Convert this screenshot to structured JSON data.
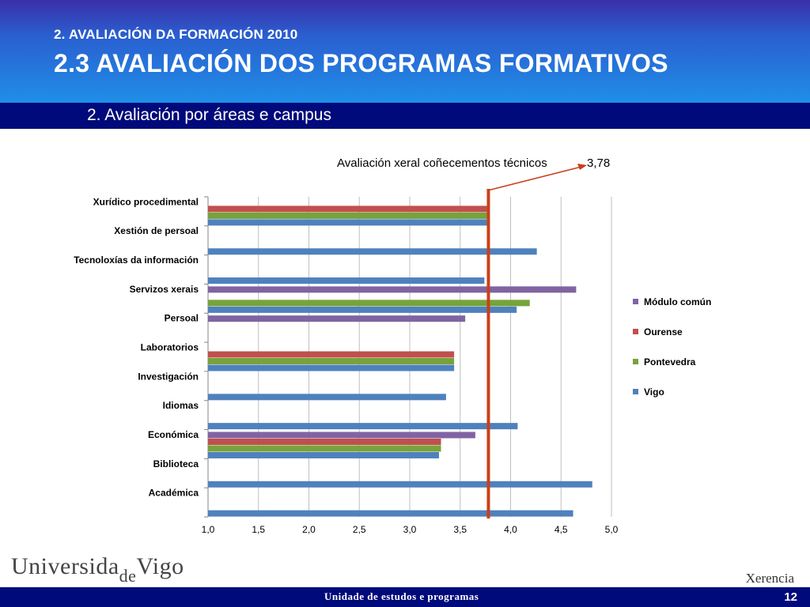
{
  "header": {
    "section": "2. AVALIACIÓN DA FORMACIÓN 2010",
    "title": "2.3 AVALIACIÓN DOS PROGRAMAS FORMATIVOS",
    "subtitle": "2. Avaliación por áreas e campus"
  },
  "footer": {
    "logo_part1": "Universida",
    "logo_part2": "de",
    "logo_part3": "Vigo",
    "right_label": "Xerencia",
    "bar_text": "Unidade de estudos e programas",
    "page_number": "12"
  },
  "chart_data": {
    "type": "bar",
    "orientation": "horizontal",
    "categories": [
      "Xurídico procedimental",
      "Xestión de persoal",
      "Tecnoloxías da información",
      "Servizos xerais",
      "Persoal",
      "Laboratorios",
      "Investigación",
      "Idiomas",
      "Económica",
      "Biblioteca",
      "Académica"
    ],
    "series": [
      {
        "name": "Módulo común",
        "color": "#8064a2",
        "values": [
          null,
          null,
          null,
          4.65,
          3.55,
          null,
          null,
          null,
          3.65,
          null,
          null
        ]
      },
      {
        "name": "Ourense",
        "color": "#c0504d",
        "values": [
          3.77,
          null,
          null,
          null,
          null,
          3.44,
          null,
          null,
          3.31,
          null,
          null
        ]
      },
      {
        "name": "Pontevedra",
        "color": "#77a33a",
        "values": [
          3.77,
          null,
          null,
          4.19,
          null,
          3.44,
          null,
          null,
          3.31,
          null,
          null
        ]
      },
      {
        "name": "Vigo",
        "color": "#4f81bd",
        "values": [
          3.77,
          4.26,
          3.74,
          4.06,
          null,
          3.44,
          3.36,
          4.07,
          3.29,
          4.81,
          4.62
        ]
      }
    ],
    "xlim": [
      1.0,
      5.0
    ],
    "xticks": [
      "1,0",
      "1,5",
      "2,0",
      "2,5",
      "3,0",
      "3,5",
      "4,0",
      "4,5",
      "5,0"
    ],
    "grid": true,
    "legend_position": "right",
    "reference_line": {
      "value": 3.78,
      "color": "#c8401a"
    },
    "annotation": {
      "text": "Avaliación xeral coñecementos técnicos",
      "value_label": "3,78"
    }
  }
}
